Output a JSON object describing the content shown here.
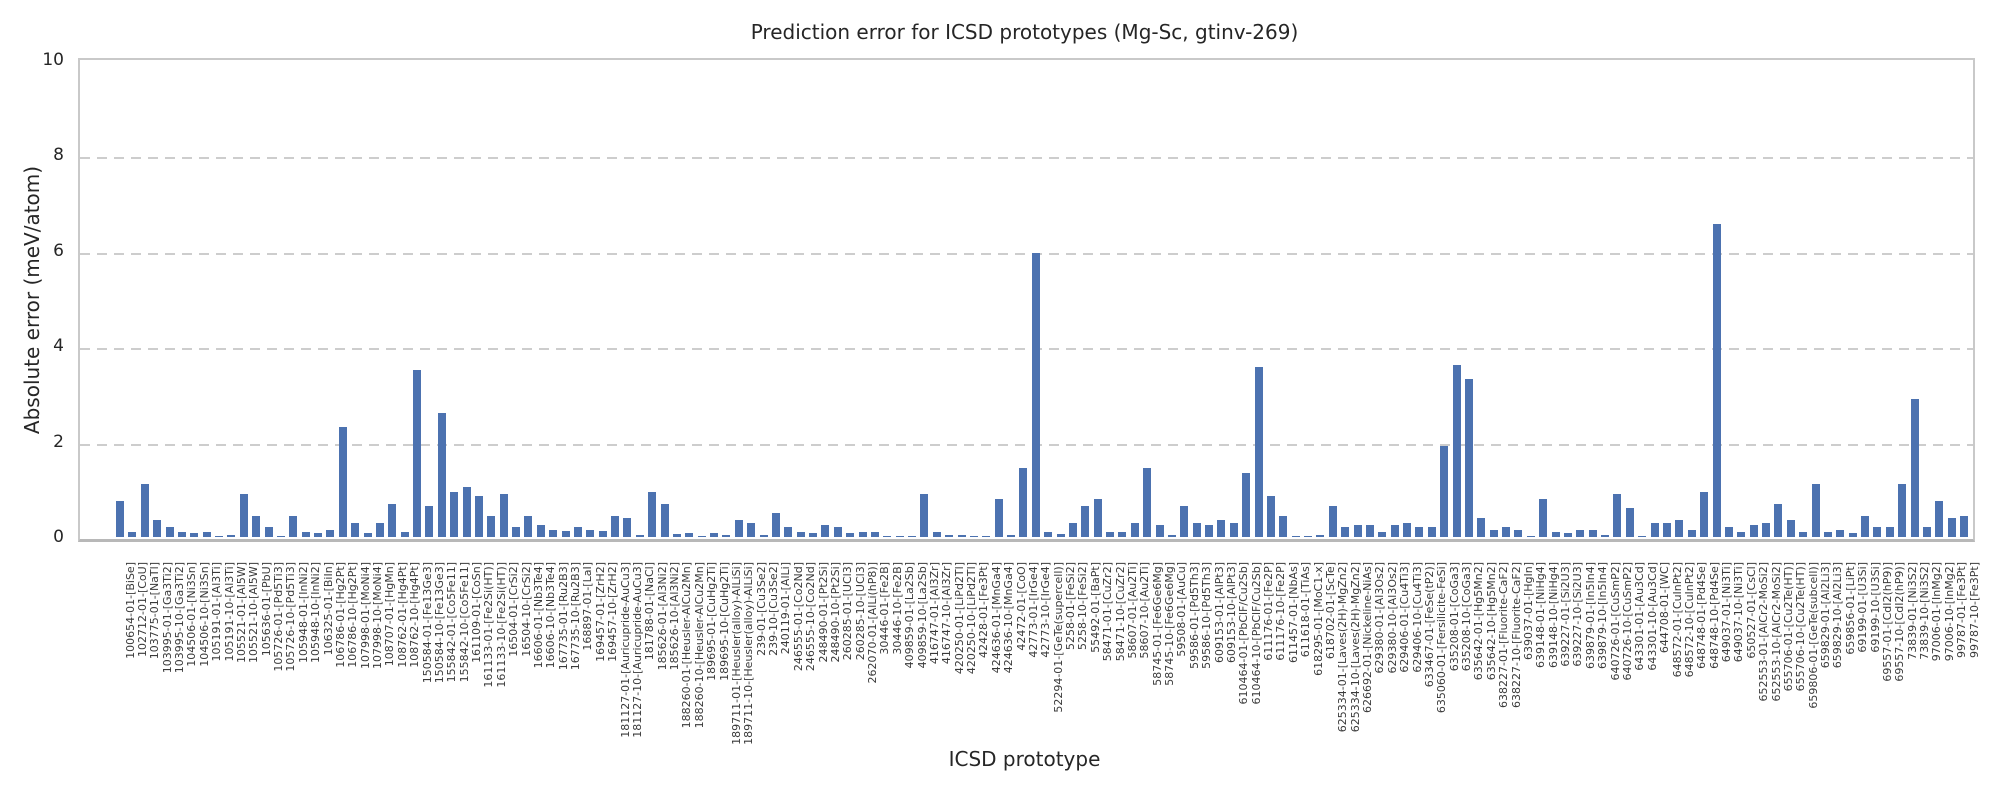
{
  "title": "Prediction error for ICSD prototypes (Mg-Sc, gtinv-269)",
  "chart_data": {
    "type": "bar",
    "title": "Prediction error for ICSD prototypes (Mg-Sc, gtinv-269)",
    "xlabel": "ICSD prototype",
    "ylabel": "Absolute error (meV/atom)",
    "ylim": [
      0,
      10
    ],
    "yticks": [
      0,
      2,
      4,
      6,
      8,
      10
    ],
    "grid": "horizontal dashed gridlines at 2,4,6,8; solid gray frame",
    "legend": "none",
    "bar_color": "#4c72b0",
    "categories": [
      "100654-01-[BiSe]",
      "102712-01-[CoU]",
      "103775-01-[NaTl]",
      "103995-01-[Ga3Ti2]",
      "103995-10-[Ga3Ti2]",
      "104506-01-[Ni3Sn]",
      "104506-10-[Ni3Sn]",
      "105191-01-[Al3Ti]",
      "105191-10-[Al3Ti]",
      "105521-01-[Al5W]",
      "105521-10-[Al5W]",
      "105636-01-[PbU]",
      "105726-01-[Pd5Ti3]",
      "105726-10-[Pd5Ti3]",
      "105948-01-[InNi2]",
      "105948-10-[InNi2]",
      "106325-01-[BiIn]",
      "106786-01-[Hg2Pt]",
      "106786-10-[Hg2Pt]",
      "107998-01-[MoNi4]",
      "107998-10-[MoNi4]",
      "108707-01-[HgMn]",
      "108762-01-[Hg4Pt]",
      "108762-10-[Hg4Pt]",
      "150584-01-[Fe13Ge3]",
      "150584-10-[Fe13Ge3]",
      "155842-01-[Co5Fe11]",
      "155842-10-[Co5Fe11]",
      "161109-01-[CoSn]",
      "161133-01-[Fe2Si(HT)]",
      "161133-10-[Fe2Si(HT)]",
      "16504-01-[CrSi2]",
      "16504-10-[CrSi2]",
      "16606-01-[Nb3Te4]",
      "16606-10-[Nb3Te4]",
      "167735-01-[Ru2B3]",
      "167735-10-[Ru2B3]",
      "168897-01-[LaI]",
      "169457-01-[ZrH2]",
      "169457-10-[ZrH2]",
      "181127-01-[Auricupride-AuCu3]",
      "181127-10-[Auricupride-AuCu3]",
      "181788-01-[NaCl]",
      "185626-01-[Al3Ni2]",
      "185626-10-[Al3Ni2]",
      "188260-01-[Heusler-AlCu2Mn]",
      "188260-10-[Heusler-AlCu2Mn]",
      "189695-01-[CuHg2Ti]",
      "189695-10-[CuHg2Ti]",
      "189711-01-[Heusler(alloy)-AlLiSi]",
      "189711-10-[Heusler(alloy)-AlLiSi]",
      "239-01-[Cu3Se2]",
      "239-10-[Cu3Se2]",
      "240119-01-[AlLi]",
      "246555-01-[Co2Nd]",
      "246555-10-[Co2Nd]",
      "248490-01-[Pt2Si]",
      "248490-10-[Pt2Si]",
      "260285-01-[UCl3]",
      "260285-10-[UCl3]",
      "262070-01-[AlLi(hP8)]",
      "30446-01-[Fe2B]",
      "30446-10-[Fe2B]",
      "409859-01-[La2Sb]",
      "409859-10-[La2Sb]",
      "416747-01-[Al3Zr]",
      "416747-10-[Al3Zr]",
      "420250-01-[LiPd2Tl]",
      "420250-10-[LiPd2Tl]",
      "42428-01-[Fe3Pt]",
      "424636-01-[MnGa4]",
      "424636-10-[MnGa4]",
      "42472-01-[CoO]",
      "42773-01-[IrGe4]",
      "42773-10-[IrGe4]",
      "52294-01-[GeTe(supercell)]",
      "5258-01-[FeSi2]",
      "5258-10-[FeSi2]",
      "55492-01-[BaPt]",
      "58471-01-[CuZr2]",
      "58471-10-[CuZr2]",
      "58607-01-[Au2Ti]",
      "58607-10-[Au2Ti]",
      "58745-01-[Fe6Ge6Mg]",
      "58745-10-[Fe6Ge6Mg]",
      "59508-01-[AuCu]",
      "59586-01-[Pd5Th3]",
      "59586-10-[Pd5Th3]",
      "609153-01-[AlPt3]",
      "609153-10-[AlPt3]",
      "610464-01-[PbClF/Cu2Sb]",
      "610464-10-[PbClF/Cu2Sb]",
      "611176-01-[Fe2P]",
      "611176-10-[Fe2P]",
      "611457-01-[NbAs]",
      "611618-01-[TiAs]",
      "618295-01-[MoC1-x]",
      "618702-01-[ScTe]",
      "625334-01-[Laves(2H)-MgZn2]",
      "625334-10-[Laves(2H)-MgZn2]",
      "626692-01-[Nickeline-NiAs]",
      "629380-01-[Al3Os2]",
      "629380-10-[Al3Os2]",
      "629406-01-[Cu4Ti3]",
      "629406-10-[Cu4Ti3]",
      "633467-01-[FeSe(tP2)]",
      "635060-01-[Fersilicite-FeSi]",
      "635208-01-[CoGa3]",
      "635208-10-[CoGa3]",
      "635642-01-[Hg5Mn2]",
      "635642-10-[Hg5Mn2]",
      "638227-01-[Fluorite-CaF2]",
      "638227-10-[Fluorite-CaF2]",
      "639037-01-[HgIn]",
      "639148-01-[NiHg4]",
      "639148-10-[NiHg4]",
      "639227-01-[Si2U3]",
      "639227-10-[Si2U3]",
      "639879-01-[In5In4]",
      "639879-10-[In5In4]",
      "640726-01-[CuSmP2]",
      "640726-10-[CuSmP2]",
      "643301-01-[Au3Cd]",
      "643301-10-[Au3Cd]",
      "644708-01-[WC]",
      "648572-01-[CuInPt2]",
      "648572-10-[CuInPt2]",
      "648748-01-[Pd4Se]",
      "648748-10-[Pd4Se]",
      "649037-01-[Ni3Ti]",
      "649037-10-[Ni3Ti]",
      "650527-01-[CsCl]",
      "652553-01-[AlCr2-MoSi2]",
      "652553-10-[AlCr2-MoSi2]",
      "655706-01-[Cu2Te(HT)]",
      "655706-10-[Cu2Te(HT)]",
      "659806-01-[GeTe(subcell)]",
      "659829-01-[Al2Li3]",
      "659829-10-[Al2Li3]",
      "659856-01-[LiPt]",
      "69199-01-[U3Si]",
      "69199-10-[U3Si]",
      "69557-01-[CdI2(hP9)]",
      "69557-10-[CdI2(hP9)]",
      "73839-01-[Ni3S2]",
      "73839-10-[Ni3S2]",
      "97006-01-[InMg2]",
      "97006-10-[InMg2]",
      "99787-01-[Fe3Pt]",
      "99787-10-[Fe3Pt]"
    ],
    "values": [
      0.75,
      0.1,
      1.1,
      0.35,
      0.2,
      0.1,
      0.08,
      0.1,
      0.03,
      0.05,
      0.9,
      0.45,
      0.2,
      0.03,
      0.45,
      0.1,
      0.08,
      0.15,
      2.3,
      0.3,
      0.08,
      0.3,
      0.7,
      0.1,
      3.5,
      0.65,
      2.6,
      0.95,
      1.05,
      0.85,
      0.45,
      0.9,
      0.2,
      0.45,
      0.25,
      0.15,
      0.12,
      0.2,
      0.15,
      0.12,
      0.45,
      0.4,
      0.05,
      0.95,
      0.7,
      0.07,
      0.08,
      0.03,
      0.08,
      0.05,
      0.35,
      0.3,
      0.05,
      0.5,
      0.2,
      0.1,
      0.08,
      0.25,
      0.2,
      0.08,
      0.1,
      0.1,
      0.03,
      0.03,
      0.03,
      0.9,
      0.1,
      0.05,
      0.05,
      0.03,
      0.03,
      0.8,
      0.05,
      1.45,
      5.95,
      0.1,
      0.07,
      0.3,
      0.65,
      0.8,
      0.1,
      0.1,
      0.3,
      1.45,
      0.25,
      0.05,
      0.65,
      0.3,
      0.25,
      0.35,
      0.3,
      1.35,
      3.55,
      0.85,
      0.45,
      0.03,
      0.03,
      0.05,
      0.65,
      0.2,
      0.25,
      0.25,
      0.1,
      0.25,
      0.3,
      0.2,
      0.2,
      1.9,
      3.6,
      3.3,
      0.4,
      0.15,
      0.2,
      0.15,
      0.03,
      0.8,
      0.1,
      0.08,
      0.15,
      0.15,
      0.05,
      0.9,
      0.6,
      0.03,
      0.3,
      0.3,
      0.35,
      0.15,
      0.95,
      6.55,
      0.2,
      0.1,
      0.25,
      0.3,
      0.7,
      0.35,
      0.1,
      1.1,
      0.1,
      0.15,
      0.08,
      0.45,
      0.2,
      0.2,
      1.1,
      2.9,
      0.2,
      0.75,
      0.4,
      0.45
    ]
  }
}
